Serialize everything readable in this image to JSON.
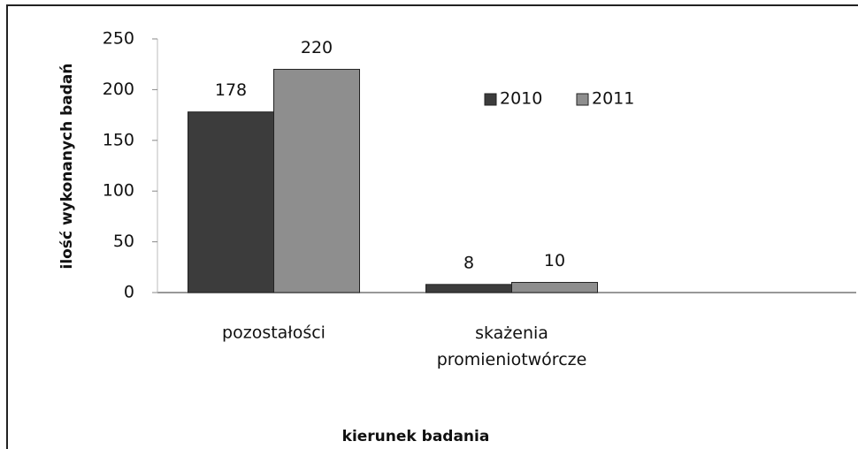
{
  "chart_data": {
    "type": "bar",
    "categories": [
      "pozostałości",
      "skażenia promieniotwórcze"
    ],
    "series": [
      {
        "name": "2010",
        "color": "#3c3c3c",
        "values": [
          178,
          8
        ]
      },
      {
        "name": "2011",
        "color": "#8e8e8e",
        "values": [
          220,
          10
        ]
      }
    ],
    "ylim": [
      0,
      250
    ],
    "yticks": [
      0,
      50,
      100,
      150,
      200,
      250
    ],
    "ylabel": "ilość wykonanych badań",
    "xlabel": "kierunek badania",
    "grid": false,
    "legend": "top-right"
  }
}
